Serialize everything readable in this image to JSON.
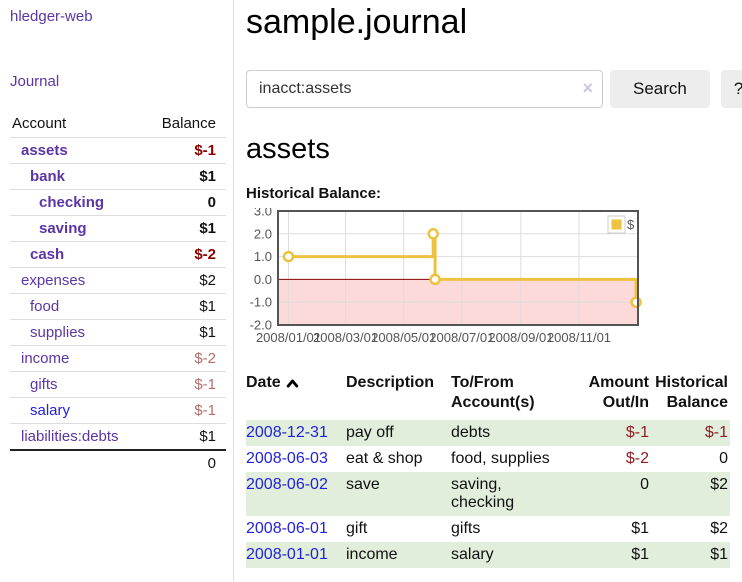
{
  "app": {
    "title": "hledger-web",
    "nav_journal": "Journal"
  },
  "sidebar": {
    "header": {
      "account": "Account",
      "balance": "Balance"
    },
    "accounts": [
      {
        "name": "assets",
        "balance": "$-1",
        "depth": 1,
        "bold": true,
        "tone": "neg-strong"
      },
      {
        "name": "bank",
        "balance": "$1",
        "depth": 2,
        "bold": true,
        "tone": ""
      },
      {
        "name": "checking",
        "balance": "0",
        "depth": 3,
        "bold": true,
        "tone": ""
      },
      {
        "name": "saving",
        "balance": "$1",
        "depth": 3,
        "bold": true,
        "tone": ""
      },
      {
        "name": "cash",
        "balance": "$-2",
        "depth": 2,
        "bold": true,
        "tone": "neg-strong"
      },
      {
        "name": "expenses",
        "balance": "$2",
        "depth": 1,
        "bold": false,
        "tone": ""
      },
      {
        "name": "food",
        "balance": "$1",
        "depth": 2,
        "bold": false,
        "tone": ""
      },
      {
        "name": "supplies",
        "balance": "$1",
        "depth": 2,
        "bold": false,
        "tone": ""
      },
      {
        "name": "income",
        "balance": "$-2",
        "depth": 1,
        "bold": false,
        "tone": "neg-soft"
      },
      {
        "name": "gifts",
        "balance": "$-1",
        "depth": 2,
        "bold": false,
        "tone": "neg-soft"
      },
      {
        "name": "salary",
        "balance": "$-1",
        "depth": 2,
        "bold": false,
        "tone": "neg-soft",
        "link": "blue"
      },
      {
        "name": "liabilities:debts",
        "balance": "$1",
        "depth": 1,
        "bold": false,
        "tone": ""
      }
    ],
    "total": "0"
  },
  "header": {
    "title": "sample.journal"
  },
  "search": {
    "value": "inacct:assets",
    "clear_icon": "×",
    "button": "Search",
    "help_button": "?"
  },
  "main": {
    "heading": "assets",
    "chart_label": "Historical Balance:"
  },
  "chart_data": {
    "type": "line",
    "step": true,
    "title": "Historical Balance",
    "series": [
      {
        "name": "$",
        "color": "#edc240",
        "points": [
          [
            "2008-01-01",
            1
          ],
          [
            "2008-06-01",
            2
          ],
          [
            "2008-06-03",
            0
          ],
          [
            "2008-12-31",
            -1
          ]
        ]
      }
    ],
    "x_ticks": [
      "2008/01/01",
      "2008/03/01",
      "2008/05/01",
      "2008/07/01",
      "2008/09/01",
      "2008/11/01"
    ],
    "y_ticks": [
      "3.0",
      "2.0",
      "1.0",
      "0.0",
      "-1.0",
      "-2.0"
    ],
    "ylim": [
      -2,
      3
    ],
    "grid": true,
    "legend_position": "top-right",
    "negative_region_fill": "#fcdada",
    "zero_line_color": "#8b0000",
    "grid_color": "#dddddd",
    "border_color": "#545454",
    "axis_text_color": "#545454"
  },
  "register": {
    "columns": {
      "date": "Date",
      "description": "Description",
      "accounts": "To/From Account(s)",
      "amount": "Amount Out/In",
      "balance": "Historical Balance"
    },
    "rows": [
      {
        "date": "2008-12-31",
        "description": "pay off",
        "accounts": "debts",
        "amount": "$-1",
        "balance": "$-1",
        "amount_neg": true,
        "balance_neg": true
      },
      {
        "date": "2008-06-03",
        "description": "eat & shop",
        "accounts": "food, supplies",
        "amount": "$-2",
        "balance": "0",
        "amount_neg": true,
        "balance_neg": false
      },
      {
        "date": "2008-06-02",
        "description": "save",
        "accounts": "saving, checking",
        "amount": "0",
        "balance": "$2",
        "amount_neg": false,
        "balance_neg": false
      },
      {
        "date": "2008-06-01",
        "description": "gift",
        "accounts": "gifts",
        "amount": "$1",
        "balance": "$2",
        "amount_neg": false,
        "balance_neg": false
      },
      {
        "date": "2008-01-01",
        "description": "income",
        "accounts": "salary",
        "amount": "$1",
        "balance": "$1",
        "amount_neg": false,
        "balance_neg": false
      }
    ]
  }
}
